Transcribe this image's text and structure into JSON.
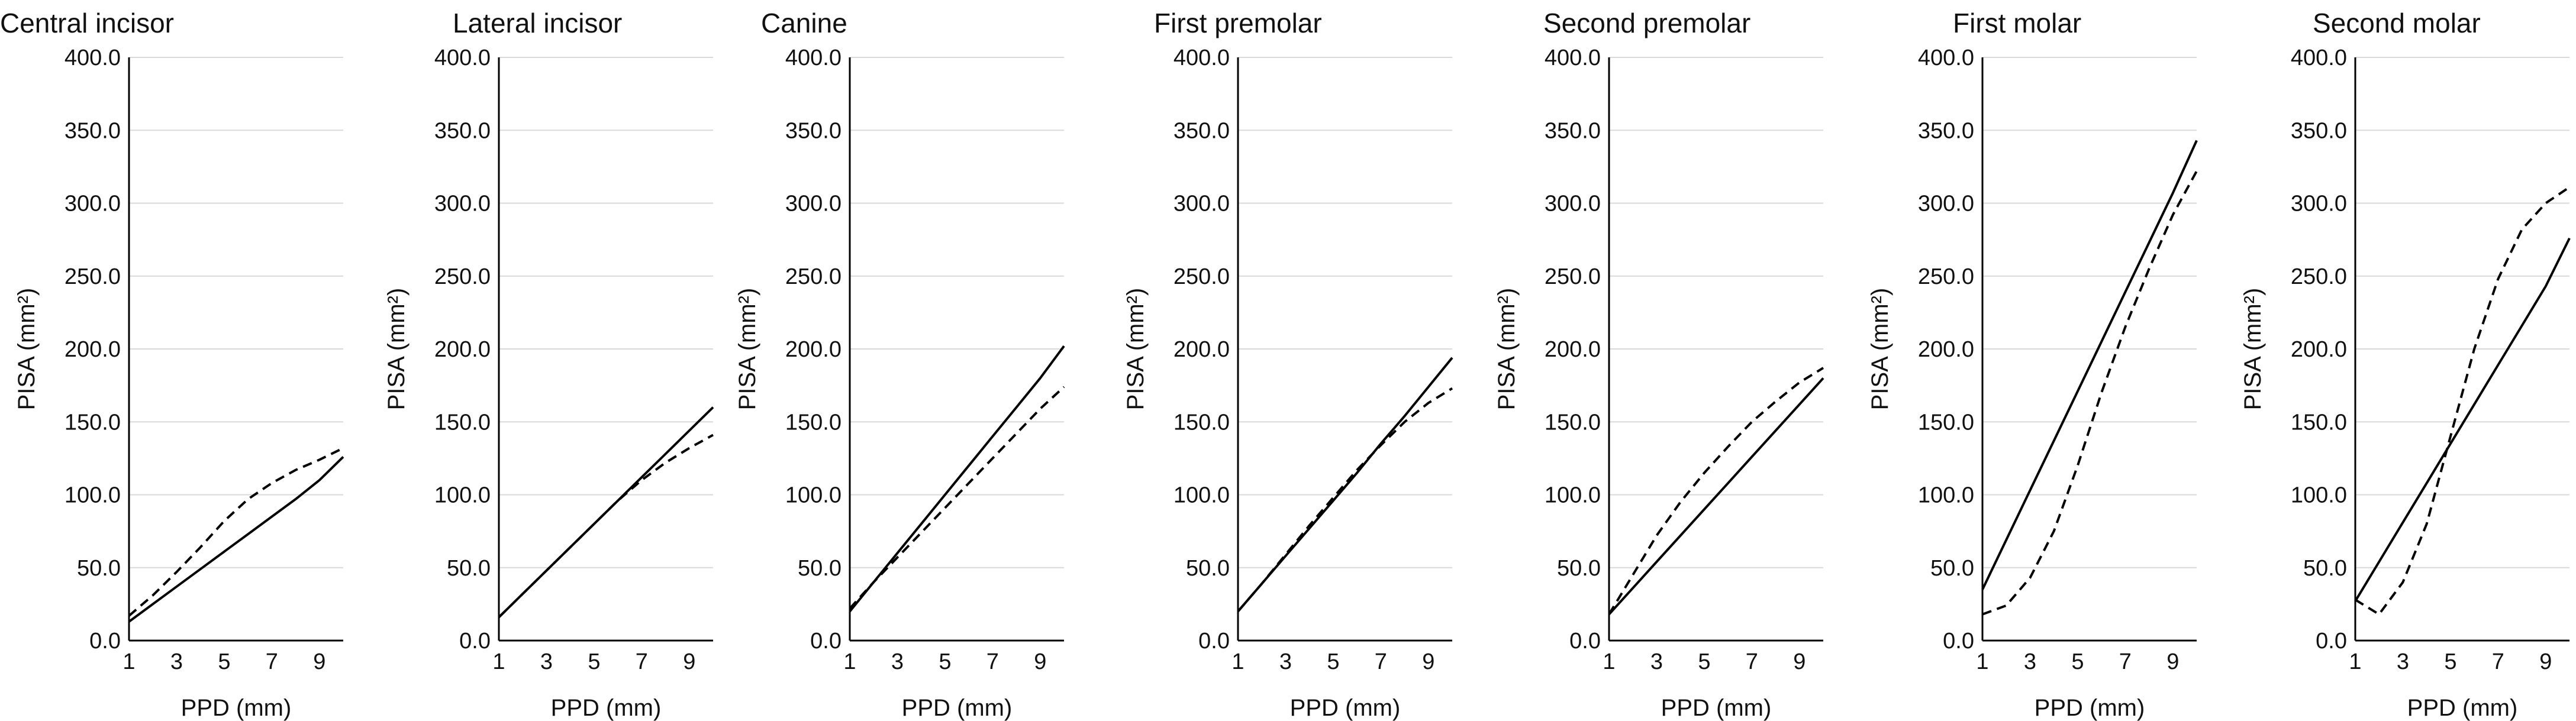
{
  "figure": {
    "type": "multi-panel line chart"
  },
  "chart_data": [
    {
      "type": "line",
      "title": "Central incisor",
      "xlabel": "PPD (mm)",
      "ylabel": "PISA (mm²)",
      "xlim": [
        1,
        10
      ],
      "ylim": [
        0,
        400
      ],
      "x_ticks": [
        "1",
        "3",
        "5",
        "7",
        "9"
      ],
      "y_ticks": [
        "0.0",
        "50.0",
        "100.0",
        "150.0",
        "200.0",
        "250.0",
        "300.0",
        "350.0",
        "400.0"
      ],
      "series": [
        {
          "name": "solid",
          "style": "solid",
          "x": [
            1,
            2,
            3,
            4,
            5,
            6,
            7,
            8,
            9,
            10
          ],
          "values": [
            13,
            25,
            37,
            49,
            61,
            73,
            85,
            97,
            110,
            126
          ]
        },
        {
          "name": "dashed",
          "style": "dashed",
          "x": [
            1,
            2,
            3,
            4,
            5,
            6,
            7,
            8,
            9,
            10
          ],
          "values": [
            17,
            31,
            47,
            64,
            82,
            97,
            108,
            117,
            124,
            132
          ]
        }
      ]
    },
    {
      "type": "line",
      "title": "Lateral incisor",
      "xlabel": "PPD (mm)",
      "ylabel": "PISA (mm²)",
      "xlim": [
        1,
        10
      ],
      "ylim": [
        0,
        400
      ],
      "x_ticks": [
        "1",
        "3",
        "5",
        "7",
        "9"
      ],
      "y_ticks": [
        "0.0",
        "50.0",
        "100.0",
        "150.0",
        "200.0",
        "250.0",
        "300.0",
        "350.0",
        "400.0"
      ],
      "series": [
        {
          "name": "solid",
          "style": "solid",
          "x": [
            1,
            2,
            3,
            4,
            5,
            6,
            7,
            8,
            9,
            10
          ],
          "values": [
            16,
            32,
            48,
            64,
            80,
            96,
            112,
            128,
            144,
            160
          ]
        },
        {
          "name": "dashed",
          "style": "dashed",
          "x": [
            1,
            2,
            3,
            4,
            5,
            6,
            7,
            8,
            9,
            10
          ],
          "values": [
            16,
            32,
            48,
            64,
            80,
            96,
            110,
            122,
            132,
            141
          ]
        }
      ]
    },
    {
      "type": "line",
      "title": "Canine",
      "xlabel": "PPD (mm)",
      "ylabel": "PISA (mm²)",
      "xlim": [
        1,
        10
      ],
      "ylim": [
        0,
        400
      ],
      "x_ticks": [
        "1",
        "3",
        "5",
        "7",
        "9"
      ],
      "y_ticks": [
        "0.0",
        "50.0",
        "100.0",
        "150.0",
        "200.0",
        "250.0",
        "300.0",
        "350.0",
        "400.0"
      ],
      "series": [
        {
          "name": "solid",
          "style": "solid",
          "x": [
            1,
            2,
            3,
            4,
            5,
            6,
            7,
            8,
            9,
            10
          ],
          "values": [
            20,
            40,
            60,
            80,
            100,
            120,
            140,
            160,
            180,
            202
          ]
        },
        {
          "name": "dashed",
          "style": "dashed",
          "x": [
            1,
            2,
            3,
            4,
            5,
            6,
            7,
            8,
            9,
            10
          ],
          "values": [
            22,
            40,
            57,
            74,
            91,
            108,
            125,
            142,
            159,
            174
          ]
        }
      ]
    },
    {
      "type": "line",
      "title": "First premolar",
      "xlabel": "PPD (mm)",
      "ylabel": "PISA (mm²)",
      "xlim": [
        1,
        10
      ],
      "ylim": [
        0,
        400
      ],
      "x_ticks": [
        "1",
        "3",
        "5",
        "7",
        "9"
      ],
      "y_ticks": [
        "0.0",
        "50.0",
        "100.0",
        "150.0",
        "200.0",
        "250.0",
        "300.0",
        "350.0",
        "400.0"
      ],
      "series": [
        {
          "name": "solid",
          "style": "solid",
          "x": [
            1,
            2,
            3,
            4,
            5,
            6,
            7,
            8,
            9,
            10
          ],
          "values": [
            20,
            39,
            58,
            77,
            96,
            115,
            135,
            154,
            174,
            194
          ]
        },
        {
          "name": "dashed",
          "style": "dashed",
          "x": [
            1,
            2,
            3,
            4,
            5,
            6,
            7,
            8,
            9,
            10
          ],
          "values": [
            20,
            39,
            59,
            79,
            98,
            117,
            134,
            150,
            163,
            173
          ]
        }
      ]
    },
    {
      "type": "line",
      "title": "Second premolar",
      "xlabel": "PPD (mm)",
      "ylabel": "PISA (mm²)",
      "xlim": [
        1,
        10
      ],
      "ylim": [
        0,
        400
      ],
      "x_ticks": [
        "1",
        "3",
        "5",
        "7",
        "9"
      ],
      "y_ticks": [
        "0.0",
        "50.0",
        "100.0",
        "150.0",
        "200.0",
        "250.0",
        "300.0",
        "350.0",
        "400.0"
      ],
      "series": [
        {
          "name": "solid",
          "style": "solid",
          "x": [
            1,
            2,
            3,
            4,
            5,
            6,
            7,
            8,
            9,
            10
          ],
          "values": [
            18,
            36,
            54,
            72,
            90,
            108,
            126,
            144,
            162,
            180
          ]
        },
        {
          "name": "dashed",
          "style": "dashed",
          "x": [
            1,
            2,
            3,
            4,
            5,
            6,
            7,
            8,
            9,
            10
          ],
          "values": [
            18,
            45,
            72,
            95,
            115,
            133,
            150,
            164,
            177,
            187
          ]
        }
      ]
    },
    {
      "type": "line",
      "title": "First molar",
      "xlabel": "PPD (mm)",
      "ylabel": "PISA (mm²)",
      "xlim": [
        1,
        10
      ],
      "ylim": [
        0,
        400
      ],
      "x_ticks": [
        "1",
        "3",
        "5",
        "7",
        "9"
      ],
      "y_ticks": [
        "0.0",
        "50.0",
        "100.0",
        "150.0",
        "200.0",
        "250.0",
        "300.0",
        "350.0",
        "400.0"
      ],
      "series": [
        {
          "name": "solid",
          "style": "solid",
          "x": [
            1,
            2,
            3,
            4,
            5,
            6,
            7,
            8,
            9,
            10
          ],
          "values": [
            35,
            69,
            103,
            137,
            171,
            205,
            239,
            273,
            307,
            343
          ]
        },
        {
          "name": "dashed",
          "style": "dashed",
          "x": [
            1,
            2,
            3,
            4,
            5,
            6,
            7,
            8,
            9,
            10
          ],
          "values": [
            18,
            24,
            43,
            75,
            120,
            170,
            215,
            255,
            292,
            322
          ]
        }
      ]
    },
    {
      "type": "line",
      "title": "Second molar",
      "xlabel": "PPD (mm)",
      "ylabel": "PISA (mm²)",
      "xlim": [
        1,
        10
      ],
      "ylim": [
        0,
        400
      ],
      "x_ticks": [
        "1",
        "3",
        "5",
        "7",
        "9"
      ],
      "y_ticks": [
        "0.0",
        "50.0",
        "100.0",
        "150.0",
        "200.0",
        "250.0",
        "300.0",
        "350.0",
        "400.0"
      ],
      "series": [
        {
          "name": "solid",
          "style": "solid",
          "x": [
            1,
            2,
            3,
            4,
            5,
            6,
            7,
            8,
            9,
            10
          ],
          "values": [
            27,
            54,
            81,
            108,
            135,
            162,
            189,
            216,
            243,
            276
          ]
        },
        {
          "name": "dashed",
          "style": "dashed",
          "x": [
            1,
            2,
            3,
            4,
            5,
            6,
            7,
            8,
            9,
            10
          ],
          "values": [
            28,
            18,
            40,
            80,
            140,
            200,
            248,
            282,
            300,
            311
          ]
        }
      ]
    }
  ]
}
